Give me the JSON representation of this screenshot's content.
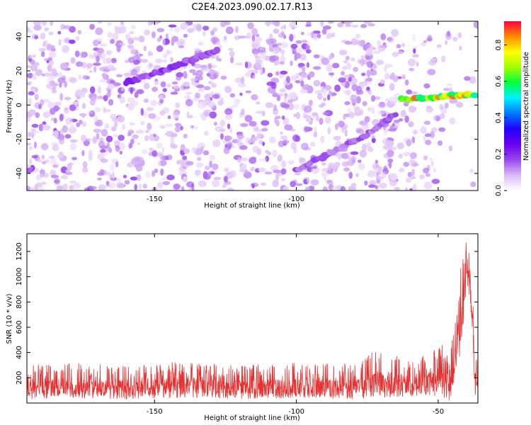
{
  "figure": {
    "title": "C2E4.2023.090.02.17.R13"
  },
  "chart_data": [
    {
      "type": "heatmap",
      "xlabel": "Height of straight line (km)",
      "ylabel": "Frequency (Hz)",
      "xlim": [
        -195,
        -36
      ],
      "ylim": [
        -50,
        49
      ],
      "xticks": [
        -150,
        -100,
        -50
      ],
      "yticks": [
        -40,
        -20,
        0,
        20,
        40
      ],
      "colorbar": {
        "label": "Normalized spectral amplitude",
        "range": [
          0,
          0.93
        ],
        "ticks": [
          "0.0",
          "0.2",
          "0.4",
          "0.6",
          "0.8"
        ],
        "tick_values": [
          0.0,
          0.2,
          0.4,
          0.6,
          0.8
        ],
        "colormap": [
          "#ffffff",
          "#d9b8f5",
          "#9a48ef",
          "#6a00ee",
          "#2200ff",
          "#0078ff",
          "#00f0ff",
          "#00ff40",
          "#a0ff00",
          "#ffff00",
          "#ff8c00",
          "#ff0040"
        ]
      },
      "features": [
        {
          "segment": "upper-line",
          "x": [
            -160,
            -147,
            -135,
            -128
          ],
          "y": [
            13,
            20,
            28,
            32
          ],
          "amplitude": 0.22
        },
        {
          "segment": "lower-line",
          "x": [
            -100,
            -88,
            -75,
            -65
          ],
          "y": [
            -38,
            -28,
            -17,
            -5
          ],
          "amplitude": 0.18
        },
        {
          "segment": "high-freq-band",
          "x": [
            -63,
            -55,
            -48,
            -42,
            -37
          ],
          "y": [
            3,
            4,
            5,
            6,
            6
          ],
          "amplitude": 0.88
        }
      ],
      "grid": false
    },
    {
      "type": "line",
      "xlabel": "Height of straight line (km)",
      "ylabel": "SNR (10 * v/v)",
      "xlim": [
        -195,
        -36
      ],
      "ylim": [
        0,
        1340
      ],
      "xticks": [
        -150,
        -100,
        -50
      ],
      "yticks": [
        200,
        400,
        600,
        800,
        1000,
        1200
      ],
      "series": [
        {
          "color": "#e83030",
          "envelope_x": [
            -195,
            -180,
            -160,
            -140,
            -120,
            -100,
            -80,
            -72,
            -60,
            -52,
            -48,
            -46,
            -44,
            -42,
            -41,
            -40,
            -39,
            -38,
            -37,
            -36
          ],
          "envelope_max": [
            300,
            320,
            300,
            330,
            300,
            320,
            310,
            440,
            330,
            410,
            480,
            330,
            700,
            1100,
            1250,
            1320,
            1200,
            950,
            400,
            460
          ],
          "envelope_min": [
            30,
            40,
            30,
            40,
            30,
            40,
            30,
            40,
            50,
            60,
            40,
            10,
            200,
            400,
            600,
            900,
            800,
            600,
            40,
            20
          ]
        }
      ],
      "grid": false
    }
  ]
}
